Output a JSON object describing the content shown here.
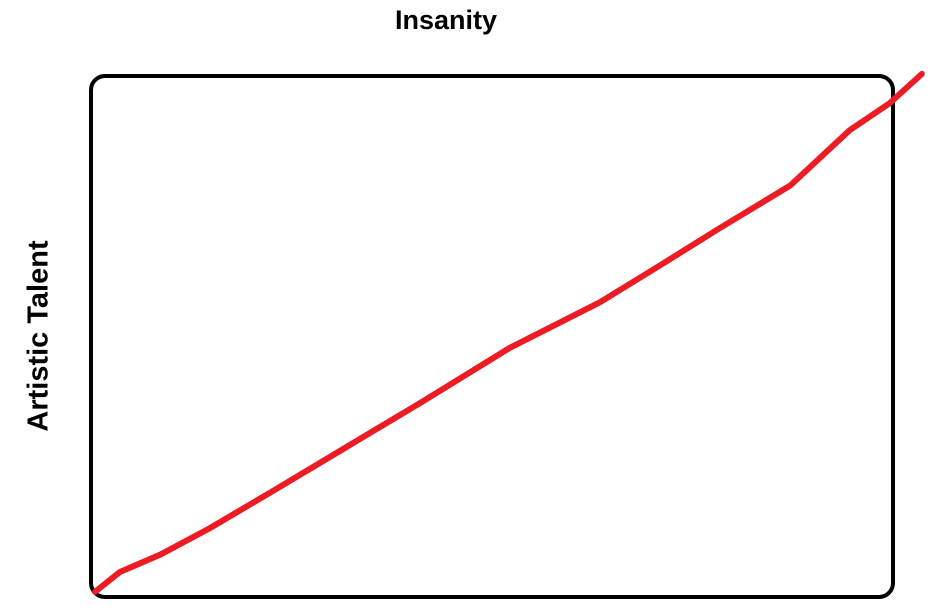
{
  "chart_data": {
    "type": "line",
    "title": "Insanity",
    "ylabel": "Artistic Talent",
    "x": [
      0.5,
      3.6,
      8.6,
      14.8,
      22.3,
      31,
      41,
      52.2,
      63.5,
      71,
      78.4,
      87.2,
      94.6,
      99.6,
      103.6
    ],
    "series": [
      {
        "color": "#ed1c24",
        "values": [
          1,
          4.8,
          8.1,
          13.2,
          20,
          28,
          37.2,
          47.8,
          56.6,
          63.7,
          70.8,
          79,
          89.6,
          94.8,
          100.4
        ]
      }
    ],
    "xlim": [
      0,
      100
    ],
    "ylim": [
      0,
      100
    ]
  }
}
